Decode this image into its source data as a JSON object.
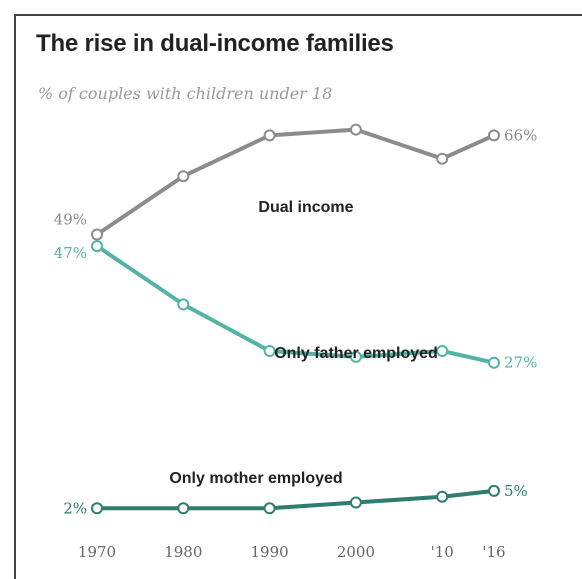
{
  "chart_data": {
    "type": "line",
    "title": "The rise in dual-income families",
    "subtitle": "% of couples with children under 18",
    "x": [
      1970,
      1980,
      1990,
      2000,
      2010,
      2016
    ],
    "tick_labels": [
      "1970",
      "1980",
      "1990",
      "2000",
      "'10",
      "'16"
    ],
    "ylim": [
      0,
      75
    ],
    "grid": false,
    "legend": "inline",
    "series": [
      {
        "name": "Dual income",
        "values": [
          49,
          59,
          66,
          67,
          62,
          66
        ],
        "color": "#8c8c8c",
        "start_label": "49%",
        "end_label": "66%"
      },
      {
        "name": "Only father employed",
        "values": [
          47,
          37,
          29,
          28,
          29,
          27
        ],
        "color": "#55b3a4",
        "start_label": "47%",
        "end_label": "27%"
      },
      {
        "name": "Only mother employed",
        "values": [
          2,
          2,
          2,
          3,
          4,
          5
        ],
        "color": "#2e7d70",
        "start_label": "2%",
        "end_label": "5%"
      }
    ]
  }
}
